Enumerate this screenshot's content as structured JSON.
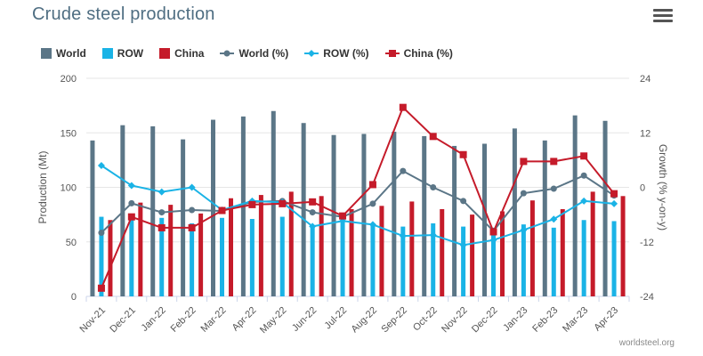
{
  "title": "Crude steel production",
  "credit": "worldsteel.org",
  "colors": {
    "title": "#4f6e82",
    "world": "#5b7687",
    "row": "#1ab3e6",
    "china": "#c51b2a"
  },
  "legend": [
    {
      "label": "World",
      "kind": "bar",
      "color": "#5b7687"
    },
    {
      "label": "ROW",
      "kind": "bar",
      "color": "#1ab3e6"
    },
    {
      "label": "China",
      "kind": "bar",
      "color": "#c51b2a"
    },
    {
      "label": "World (%)",
      "kind": "line",
      "marker": "circle",
      "color": "#5b7687"
    },
    {
      "label": "ROW (%)",
      "kind": "line",
      "marker": "diamond",
      "color": "#1ab3e6"
    },
    {
      "label": "China (%)",
      "kind": "line",
      "marker": "square",
      "color": "#c51b2a"
    }
  ],
  "icons": {
    "menu": "hamburger-menu-icon"
  },
  "chart_data": {
    "type": "bar",
    "title": "Crude steel production",
    "categories": [
      "Nov-21",
      "Dec-21",
      "Jan-22",
      "Feb-22",
      "Mar-22",
      "Apr-22",
      "May-22",
      "Jun-22",
      "Jul-22",
      "Aug-22",
      "Sep-22",
      "Oct-22",
      "Nov-22",
      "Dec-22",
      "Jan-23",
      "Feb-23",
      "Mar-23",
      "Apr-23"
    ],
    "ylabel": "Production (Mt)",
    "ylim": [
      0,
      200
    ],
    "yticks": [
      0,
      50,
      100,
      150,
      200
    ],
    "y2label": "Growth (% y-on-y)",
    "y2lim": [
      -24,
      24
    ],
    "y2ticks": [
      -24,
      -12,
      0,
      12,
      24
    ],
    "grid": true,
    "legend_position": "top",
    "series": [
      {
        "name": "World",
        "type": "bar",
        "axis": "left",
        "color": "#5b7687",
        "values": [
          143,
          157,
          156,
          144,
          162,
          165,
          170,
          159,
          148,
          149,
          151,
          147,
          138,
          140,
          154,
          143,
          166,
          161
        ]
      },
      {
        "name": "ROW",
        "type": "bar",
        "axis": "left",
        "color": "#1ab3e6",
        "values": [
          73,
          72,
          72,
          67,
          72,
          71,
          73,
          65,
          68,
          66,
          64,
          67,
          64,
          63,
          66,
          63,
          70,
          69
        ]
      },
      {
        "name": "China",
        "type": "bar",
        "axis": "left",
        "color": "#c51b2a",
        "values": [
          70,
          86,
          84,
          76,
          90,
          93,
          96,
          92,
          80,
          83,
          87,
          80,
          75,
          78,
          88,
          80,
          96,
          92
        ]
      },
      {
        "name": "World (%)",
        "type": "line",
        "axis": "right",
        "color": "#5b7687",
        "marker": "circle",
        "values": [
          -10,
          -3.5,
          -5.5,
          -5,
          -5.2,
          -3.2,
          -3,
          -5.5,
          -6.5,
          -3.6,
          3.6,
          0,
          -3,
          -9.6,
          -1.3,
          -0.3,
          2.6,
          -1.8
        ]
      },
      {
        "name": "ROW (%)",
        "type": "line",
        "axis": "right",
        "color": "#1ab3e6",
        "marker": "diamond",
        "values": [
          4.8,
          0.4,
          -1,
          0,
          -5,
          -3,
          -3.3,
          -8.6,
          -7.4,
          -8.2,
          -10.7,
          -10.5,
          -12.7,
          -11.6,
          -9.4,
          -7,
          -3,
          -3.6
        ]
      },
      {
        "name": "China (%)",
        "type": "line",
        "axis": "right",
        "color": "#c51b2a",
        "marker": "square",
        "values": [
          -22.2,
          -6.5,
          -8.9,
          -8.9,
          -5.1,
          -3.8,
          -3.6,
          -3.2,
          -6.3,
          0.6,
          17.6,
          11.2,
          7.2,
          -9.8,
          5.7,
          5.7,
          6.9,
          -1.4
        ]
      }
    ]
  }
}
